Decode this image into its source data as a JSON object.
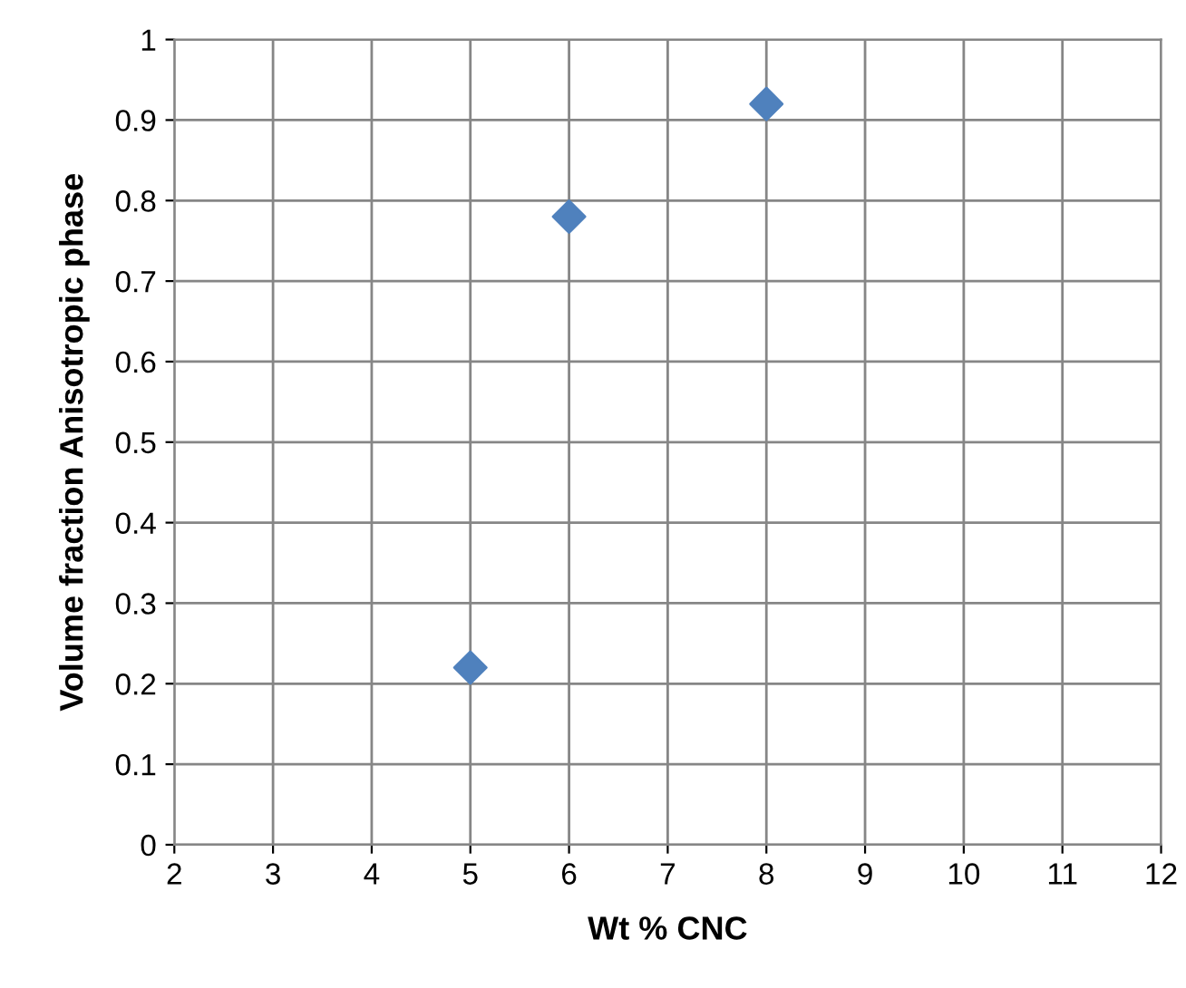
{
  "chart_data": {
    "type": "scatter",
    "xlabel": "Wt % CNC",
    "ylabel": "Volume fraction Anisotropic phase",
    "x": [
      5,
      6,
      8
    ],
    "series": [
      {
        "color": "#4f81bd",
        "values": [
          0.22,
          0.78,
          0.92
        ]
      }
    ],
    "xlim": [
      2,
      12
    ],
    "xticks": [
      2,
      3,
      4,
      5,
      6,
      7,
      8,
      9,
      10,
      11,
      12
    ],
    "ylim": [
      0,
      1
    ],
    "yticks": [
      0,
      0.1,
      0.2,
      0.3,
      0.4,
      0.5,
      0.6,
      0.7,
      0.8,
      0.9,
      1
    ],
    "grid": true,
    "marker": "diamond"
  }
}
